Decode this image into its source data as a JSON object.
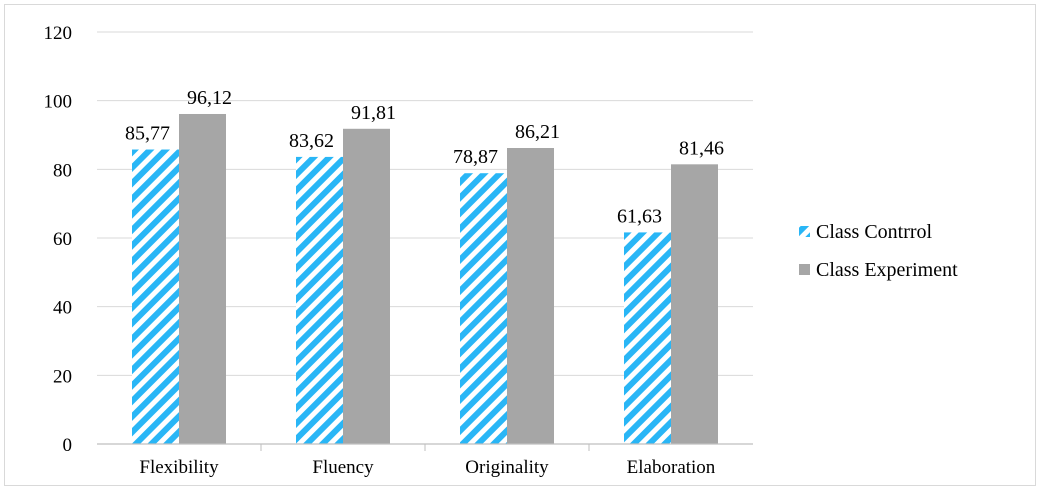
{
  "chart_data": {
    "type": "bar",
    "title": "",
    "xlabel": "",
    "ylabel": "",
    "ylim": [
      0,
      120
    ],
    "yticks": [
      0,
      20,
      40,
      60,
      80,
      100,
      120
    ],
    "grid": true,
    "legend_position": "right",
    "categories": [
      "Flexibility",
      "Fluency",
      "Originality",
      "Elaboration"
    ],
    "series": [
      {
        "name": "Class Contrrol",
        "values": [
          85.77,
          83.62,
          78.87,
          61.63
        ],
        "labels": [
          "85,77",
          "83,62",
          "78,87",
          "61,63"
        ],
        "color": "#29b6f6",
        "pattern": "diagonal-hatch"
      },
      {
        "name": "Class Experiment",
        "values": [
          96.12,
          91.81,
          86.21,
          81.46
        ],
        "labels": [
          "96,12",
          "91,81",
          "86,21",
          "81,46"
        ],
        "color": "#a6a6a6",
        "pattern": "solid"
      }
    ]
  }
}
